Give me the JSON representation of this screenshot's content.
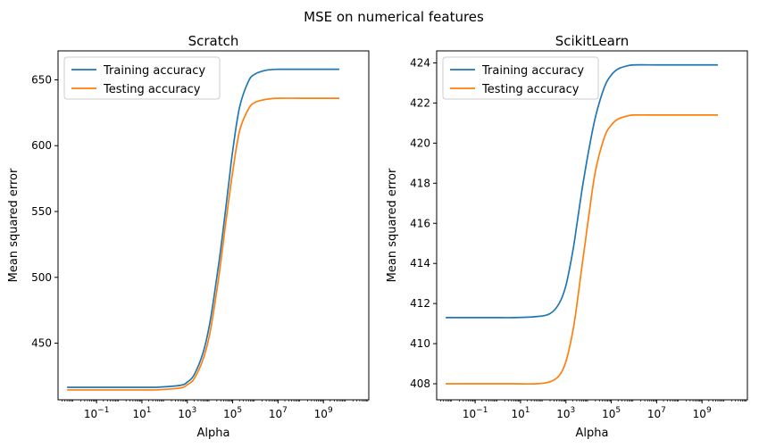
{
  "figure": {
    "title": "MSE on numerical features"
  },
  "chart_data": [
    {
      "type": "line",
      "title": "Scratch",
      "xlabel": "Alpha",
      "ylabel": "Mean squared error",
      "xscale": "log",
      "xlim": [
        0.002,
        100000000000
      ],
      "ylim": [
        407,
        672
      ],
      "yticks": [
        450,
        500,
        550,
        600,
        650
      ],
      "xticks": [
        {
          "value": 0.1,
          "base": "10",
          "exp": "−1"
        },
        {
          "value": 10,
          "base": "10",
          "exp": "1"
        },
        {
          "value": 1000,
          "base": "10",
          "exp": "3"
        },
        {
          "value": 100000,
          "base": "10",
          "exp": "5"
        },
        {
          "value": 10000000,
          "base": "10",
          "exp": "7"
        },
        {
          "value": 1000000000,
          "base": "10",
          "exp": "9"
        }
      ],
      "x": [
        0.005,
        0.05,
        0.5,
        5,
        50,
        500,
        1000,
        2000,
        5000,
        10000,
        20000,
        30000,
        50000,
        70000,
        100000,
        200000,
        500000,
        1000000,
        3000000,
        10000000,
        100000000,
        1000000000,
        5000000000
      ],
      "series": [
        {
          "name": "Training accuracy",
          "color": "#1f77b4",
          "values": [
            416.5,
            416.5,
            416.5,
            416.5,
            416.6,
            418.0,
            420.5,
            426.0,
            443.0,
            466.0,
            500.0,
            522.0,
            553.0,
            574.0,
            596.0,
            629.0,
            649.0,
            654.5,
            657.3,
            658.0,
            658.0,
            658.0,
            658.0
          ]
        },
        {
          "name": "Testing accuracy",
          "color": "#ff7f0e",
          "values": [
            414.5,
            414.5,
            414.5,
            414.5,
            414.6,
            416.0,
            418.5,
            423.0,
            438.0,
            458.0,
            490.0,
            512.0,
            542.0,
            561.0,
            580.0,
            611.0,
            628.0,
            633.0,
            635.2,
            636.0,
            636.0,
            636.0,
            636.0
          ]
        }
      ],
      "legend": "upper-left",
      "grid": false
    },
    {
      "type": "line",
      "title": "ScikitLearn",
      "xlabel": "Alpha",
      "ylabel": "Mean squared error",
      "xscale": "log",
      "xlim": [
        0.002,
        100000000000
      ],
      "ylim": [
        407.2,
        424.6
      ],
      "yticks": [
        408,
        410,
        412,
        414,
        416,
        418,
        420,
        422,
        424
      ],
      "xticks": [
        {
          "value": 0.1,
          "base": "10",
          "exp": "−1"
        },
        {
          "value": 10,
          "base": "10",
          "exp": "1"
        },
        {
          "value": 1000,
          "base": "10",
          "exp": "3"
        },
        {
          "value": 100000,
          "base": "10",
          "exp": "5"
        },
        {
          "value": 10000000,
          "base": "10",
          "exp": "7"
        },
        {
          "value": 1000000000,
          "base": "10",
          "exp": "9"
        }
      ],
      "x": [
        0.005,
        0.05,
        0.5,
        5,
        50,
        200,
        500,
        1000,
        2000,
        3000,
        5000,
        7000,
        10000,
        20000,
        50000,
        100000,
        200000,
        500000,
        1000000,
        10000000,
        100000000,
        1000000000,
        5000000000
      ],
      "series": [
        {
          "name": "Training accuracy",
          "color": "#1f77b4",
          "values": [
            411.3,
            411.3,
            411.3,
            411.3,
            411.35,
            411.5,
            412.0,
            412.9,
            414.6,
            415.9,
            417.6,
            418.6,
            419.6,
            421.3,
            422.8,
            423.4,
            423.7,
            423.85,
            423.9,
            423.9,
            423.9,
            423.9,
            423.9
          ]
        },
        {
          "name": "Testing accuracy",
          "color": "#ff7f0e",
          "values": [
            408.0,
            408.0,
            408.0,
            408.0,
            408.0,
            408.1,
            408.4,
            409.1,
            410.6,
            411.9,
            413.8,
            415.0,
            416.3,
            418.6,
            420.3,
            420.9,
            421.2,
            421.35,
            421.4,
            421.4,
            421.4,
            421.4,
            421.4
          ]
        }
      ],
      "legend": "upper-left",
      "grid": false
    }
  ]
}
